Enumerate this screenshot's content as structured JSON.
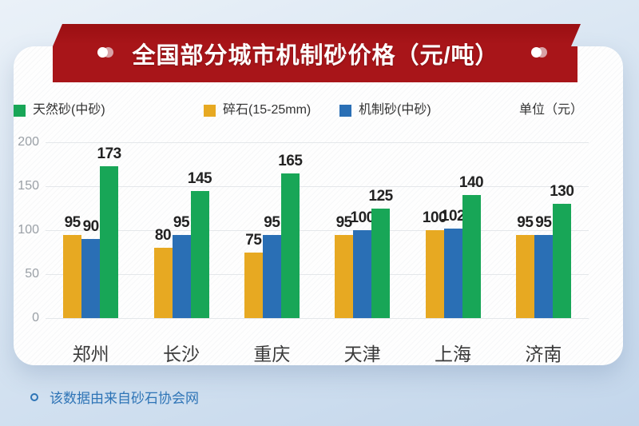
{
  "banner": {
    "title": "全国部分城市机制砂价格（元/吨）"
  },
  "legend": {
    "items": [
      {
        "label": "碎石(15-25mm)",
        "color": "#E7A922"
      },
      {
        "label": "机制砂(中砂)",
        "color": "#2A6FB5"
      },
      {
        "label": "天然砂(中砂)",
        "color": "#18A657"
      }
    ],
    "unit_label": "单位（元）"
  },
  "chart_data": {
    "type": "bar",
    "title": "全国部分城市机制砂价格（元/吨）",
    "categories": [
      "郑州",
      "长沙",
      "重庆",
      "天津",
      "上海",
      "济南"
    ],
    "series": [
      {
        "name": "碎石(15-25mm)",
        "color": "#E7A922",
        "values": [
          95,
          80,
          75,
          95,
          100,
          95
        ]
      },
      {
        "name": "机制砂(中砂)",
        "color": "#2A6FB5",
        "values": [
          90,
          95,
          95,
          100,
          102,
          95
        ]
      },
      {
        "name": "天然砂(中砂)",
        "color": "#18A657",
        "values": [
          173,
          145,
          165,
          125,
          140,
          130
        ]
      }
    ],
    "xlabel": "",
    "ylabel": "单位（元）",
    "ylim": [
      0,
      200
    ],
    "yticks": [
      0,
      50,
      100,
      150,
      200
    ],
    "grid": true,
    "legend_position": "top",
    "value_labels": true
  },
  "footer": {
    "source_note": "该数据由来自砂石协会网"
  },
  "colors": {
    "banner_red": "#A81519",
    "footer_blue": "#2E74B6",
    "axis_gray": "#9AA0A6",
    "grid_gray": "#E4E7EA"
  }
}
